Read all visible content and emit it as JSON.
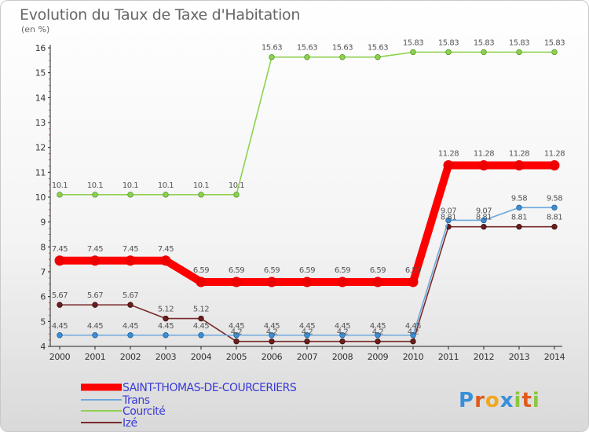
{
  "chart_data": {
    "type": "line",
    "title": "Evolution du Taux de Taxe d'Habitation",
    "subtitle": "(en %)",
    "categories": [
      "2000",
      "2001",
      "2002",
      "2003",
      "2004",
      "2005",
      "2006",
      "2007",
      "2008",
      "2009",
      "2010",
      "2011",
      "2012",
      "2013",
      "2014"
    ],
    "ylim": [
      4,
      16
    ],
    "yticks": [
      4,
      5,
      6,
      7,
      8,
      9,
      10,
      11,
      12,
      13,
      14,
      15,
      16
    ],
    "grid": false,
    "legend_position": "bottom-left",
    "series": [
      {
        "name": "SAINT-THOMAS-DE-COURCERIERS",
        "color": "#ff0000",
        "values": [
          7.45,
          7.45,
          7.45,
          7.45,
          6.59,
          6.59,
          6.59,
          6.59,
          6.59,
          6.59,
          6.59,
          11.28,
          11.28,
          11.28,
          11.28
        ],
        "labels": [
          "7.45",
          "7.45",
          "7.45",
          "7.45",
          "6.59",
          "6.59",
          "6.59",
          "6.59",
          "6.59",
          "6.59",
          "6.59",
          "11.28",
          "11.28",
          "11.28",
          "11.28"
        ]
      },
      {
        "name": "Trans",
        "color": "#6fa8dc",
        "values": [
          4.45,
          4.45,
          4.45,
          4.45,
          4.45,
          4.45,
          4.45,
          4.45,
          4.45,
          4.45,
          4.45,
          9.07,
          9.07,
          9.58,
          9.58
        ],
        "labels": [
          "4.45",
          "4.45",
          "4.45",
          "4.45",
          "4.45",
          "4.45",
          "4.45",
          "4.45",
          "4.45",
          "4.45",
          "4.45",
          "9.07",
          "9.07",
          "9.58",
          "9.58"
        ]
      },
      {
        "name": "Courcité",
        "color": "#8fd14f",
        "values": [
          10.1,
          10.1,
          10.1,
          10.1,
          10.1,
          10.1,
          15.63,
          15.63,
          15.63,
          15.63,
          15.83,
          15.83,
          15.83,
          15.83,
          15.83
        ],
        "labels": [
          "10.1",
          "10.1",
          "10.1",
          "10.1",
          "10.1",
          "10.1",
          "15.63",
          "15.63",
          "15.63",
          "15.63",
          "15.83",
          "15.83",
          "15.83",
          "15.83",
          "15.83"
        ]
      },
      {
        "name": "Izé",
        "color": "#7a2a2a",
        "values": [
          5.67,
          5.67,
          5.67,
          5.12,
          5.12,
          4.2,
          4.2,
          4.2,
          4.2,
          4.2,
          4.2,
          8.81,
          8.81,
          8.81,
          8.81
        ],
        "labels": [
          "5.67",
          "5.67",
          "5.67",
          "5.12",
          "5.12",
          "4.2",
          "4.2",
          "4.2",
          "4.2",
          "4.2",
          "4.2",
          "8.81",
          "8.81",
          "8.81",
          "8.81"
        ]
      }
    ]
  },
  "logo": {
    "text": "Proxiti",
    "letters": [
      "P",
      "r",
      "o",
      "x",
      "i",
      "t",
      "i"
    ],
    "colors": [
      "#3a8fd8",
      "#e05a1c",
      "#f2a71b",
      "#3a8fd8",
      "#8cc63f",
      "#e05a1c",
      "#8cc63f"
    ]
  }
}
